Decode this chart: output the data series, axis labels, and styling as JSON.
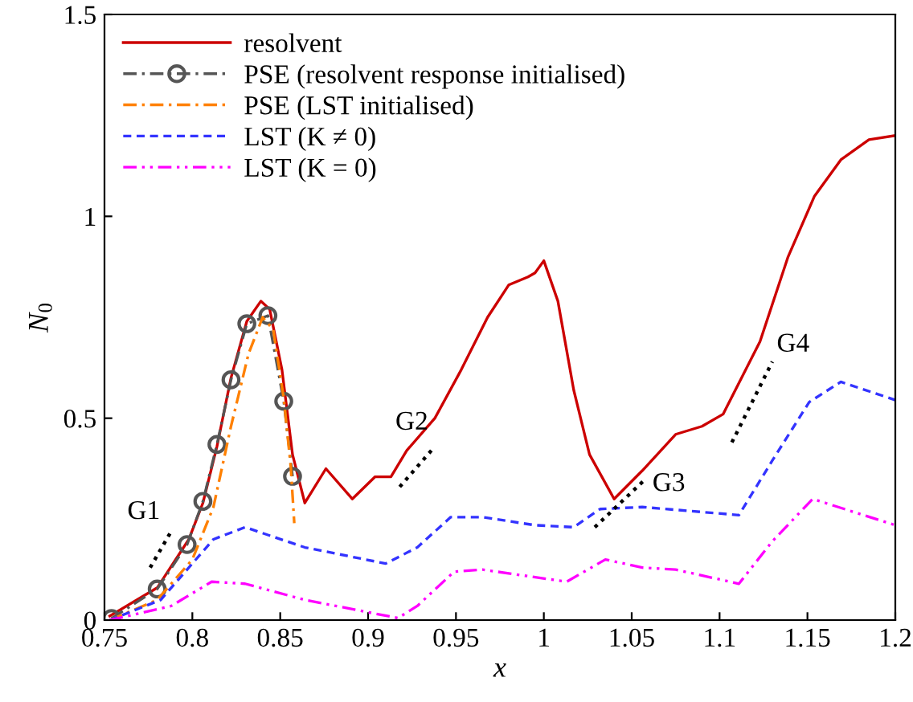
{
  "chart_data": {
    "type": "line",
    "xlabel": "x",
    "ylabel": "N$_{0}$",
    "xlim": [
      0.75,
      1.2
    ],
    "ylim": [
      0,
      1.5
    ],
    "xticks": [
      0.75,
      0.8,
      0.85,
      0.9,
      0.95,
      1,
      1.05,
      1.1,
      1.15,
      1.2
    ],
    "yticks": [
      0,
      0.5,
      1,
      1.5
    ],
    "grid": false,
    "legend": "top left",
    "series": [
      {
        "name": "resolvent",
        "color": "#cc0000",
        "line_style": "solid",
        "marker": "none",
        "x": [
          0.753,
          0.78,
          0.798,
          0.806,
          0.814,
          0.822,
          0.831,
          0.839,
          0.844,
          0.851,
          0.857,
          0.864,
          0.876,
          0.891,
          0.904,
          0.913,
          0.922,
          0.938,
          0.953,
          0.968,
          0.98,
          0.991,
          0.995,
          1.0,
          1.008,
          1.017,
          1.026,
          1.04,
          1.056,
          1.075,
          1.09,
          1.102,
          1.123,
          1.139,
          1.154,
          1.169,
          1.185,
          1.2
        ],
        "values": [
          0.01,
          0.08,
          0.2,
          0.29,
          0.43,
          0.6,
          0.74,
          0.79,
          0.77,
          0.62,
          0.41,
          0.29,
          0.375,
          0.3,
          0.355,
          0.355,
          0.42,
          0.5,
          0.62,
          0.75,
          0.83,
          0.85,
          0.86,
          0.89,
          0.79,
          0.57,
          0.41,
          0.3,
          0.37,
          0.46,
          0.48,
          0.51,
          0.69,
          0.9,
          1.05,
          1.14,
          1.19,
          1.2
        ]
      },
      {
        "name": "PSE (resolvent response initialised)",
        "color": "#555555",
        "line_style": "dashdot",
        "marker": "circle",
        "x": [
          0.754,
          0.78,
          0.797,
          0.806,
          0.814,
          0.822,
          0.831,
          0.843,
          0.852,
          0.857
        ],
        "values": [
          0.004,
          0.077,
          0.187,
          0.294,
          0.435,
          0.595,
          0.734,
          0.754,
          0.542,
          0.356
        ]
      },
      {
        "name": "PSE (LST initialised)",
        "color": "#ff8000",
        "line_style": "dashdot",
        "marker": "none",
        "x": [
          0.753,
          0.78,
          0.8,
          0.812,
          0.822,
          0.832,
          0.84,
          0.846,
          0.852,
          0.856,
          0.858
        ],
        "values": [
          0.0,
          0.05,
          0.15,
          0.28,
          0.48,
          0.66,
          0.75,
          0.72,
          0.55,
          0.38,
          0.24
        ]
      },
      {
        "name": "LST (K ≠ 0)",
        "color": "#3333ff",
        "line_style": "dashed",
        "marker": "none",
        "x": [
          0.753,
          0.782,
          0.798,
          0.812,
          0.83,
          0.864,
          0.91,
          0.928,
          0.947,
          0.965,
          0.995,
          1.017,
          1.032,
          1.056,
          1.111,
          1.13,
          1.151,
          1.169,
          1.2
        ],
        "values": [
          0.0,
          0.05,
          0.13,
          0.2,
          0.23,
          0.18,
          0.14,
          0.18,
          0.255,
          0.255,
          0.235,
          0.23,
          0.275,
          0.28,
          0.26,
          0.395,
          0.54,
          0.59,
          0.545
        ]
      },
      {
        "name": "LST (K = 0)",
        "color": "#ff00ff",
        "line_style": "dashdotdot",
        "marker": "none",
        "x": [
          0.753,
          0.788,
          0.811,
          0.83,
          0.864,
          0.917,
          0.928,
          0.949,
          0.965,
          1.013,
          1.035,
          1.056,
          1.075,
          1.111,
          1.13,
          1.153,
          1.2
        ],
        "values": [
          0.0,
          0.035,
          0.095,
          0.09,
          0.05,
          0.005,
          0.035,
          0.12,
          0.125,
          0.095,
          0.15,
          0.13,
          0.125,
          0.09,
          0.195,
          0.3,
          0.235
        ]
      },
      {
        "color": "#000000",
        "line_style": "dotted",
        "marker": "none",
        "x": [
          0.776,
          0.788
        ],
        "values": [
          0.13,
          0.22
        ]
      },
      {
        "color": "#000000",
        "line_style": "dotted",
        "marker": "none",
        "x": [
          0.918,
          0.938
        ],
        "values": [
          0.33,
          0.43
        ]
      },
      {
        "color": "#000000",
        "line_style": "dotted",
        "marker": "none",
        "x": [
          1.029,
          1.058
        ],
        "values": [
          0.23,
          0.35
        ]
      },
      {
        "color": "#000000",
        "line_style": "dotted",
        "marker": "none",
        "x": [
          1.107,
          1.13
        ],
        "values": [
          0.44,
          0.64
        ]
      }
    ],
    "annotations": [
      {
        "text": "G1",
        "x": 0.788,
        "y": 0.22
      },
      {
        "text": "G2",
        "x": 0.938,
        "y": 0.43
      },
      {
        "text": "G3",
        "x": 1.058,
        "y": 0.35
      },
      {
        "text": "G4",
        "x": 1.13,
        "y": 0.64
      }
    ]
  }
}
